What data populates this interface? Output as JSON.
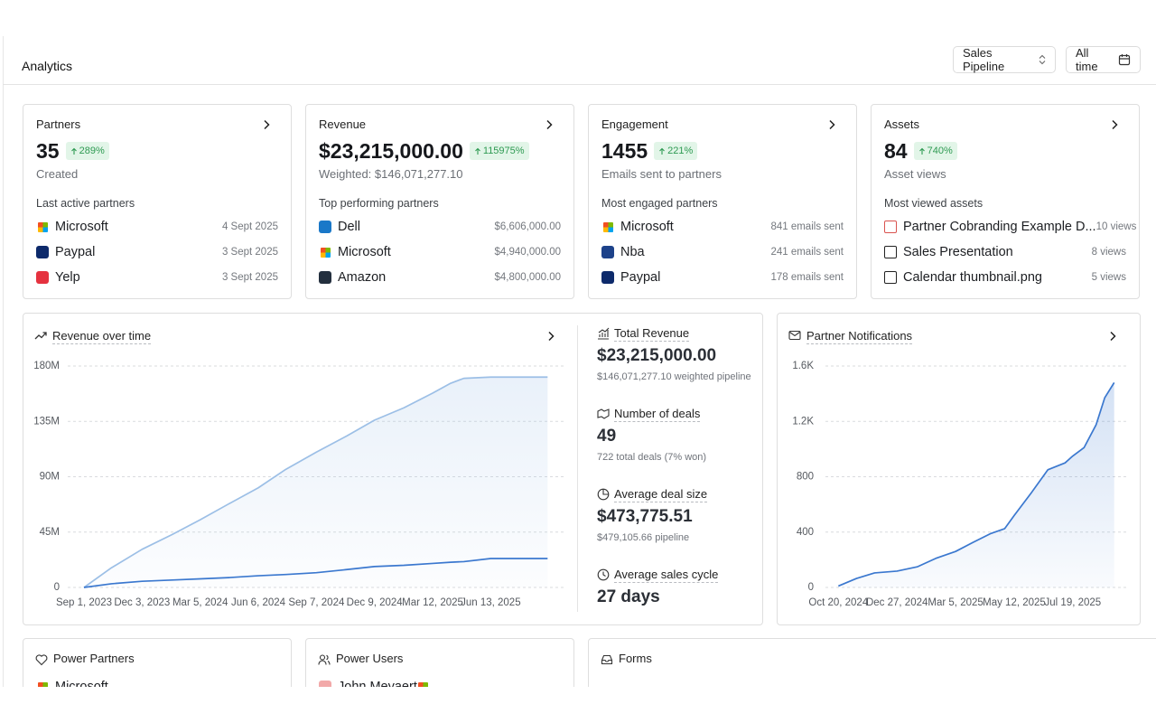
{
  "header": {
    "title": "Analytics",
    "pipeline_select": "Sales Pipeline",
    "time_select": "All time"
  },
  "cards": [
    {
      "title": "Partners",
      "value": "35",
      "change": "289%",
      "subtitle": "Created",
      "list_title": "Last active partners",
      "items": [
        {
          "name": "Microsoft",
          "meta": "4 Sept 2025"
        },
        {
          "name": "Paypal",
          "meta": "3 Sept 2025"
        },
        {
          "name": "Yelp",
          "meta": "3 Sept 2025"
        }
      ]
    },
    {
      "title": "Revenue",
      "value": "$23,215,000.00",
      "change": "115975%",
      "subtitle": "Weighted: $146,071,277.10",
      "list_title": "Top performing partners",
      "items": [
        {
          "name": "Dell",
          "meta": "$6,606,000.00"
        },
        {
          "name": "Microsoft",
          "meta": "$4,940,000.00"
        },
        {
          "name": "Amazon",
          "meta": "$4,800,000.00"
        }
      ]
    },
    {
      "title": "Engagement",
      "value": "1455",
      "change": "221%",
      "subtitle": "Emails sent to partners",
      "list_title": "Most engaged partners",
      "items": [
        {
          "name": "Microsoft",
          "meta": "841 emails sent"
        },
        {
          "name": "Nba",
          "meta": "241 emails sent"
        },
        {
          "name": "Paypal",
          "meta": "178 emails sent"
        }
      ]
    },
    {
      "title": "Assets",
      "value": "84",
      "change": "740%",
      "subtitle": "Asset views",
      "list_title": "Most viewed assets",
      "items": [
        {
          "name": "Partner Cobranding Example D...",
          "meta": "10 views"
        },
        {
          "name": "Sales Presentation",
          "meta": "8 views"
        },
        {
          "name": "Calendar thumbnail.png",
          "meta": "5 views"
        }
      ]
    }
  ],
  "stats": [
    {
      "label": "Total Revenue",
      "value": "$23,215,000.00",
      "detail": "$146,071,277.10 weighted pipeline"
    },
    {
      "label": "Number of deals",
      "value": "49",
      "detail": "722 total deals (7% won)"
    },
    {
      "label": "Average deal size",
      "value": "$473,775.51",
      "detail": "$479,105.66 pipeline"
    },
    {
      "label": "Average sales cycle",
      "value": "27 days"
    }
  ],
  "chart_data": [
    {
      "type": "line",
      "title": "Revenue over time",
      "x": [
        "2023-09-01",
        "2023-10-15",
        "2023-12-03",
        "2024-01-20",
        "2024-03-05",
        "2024-04-20",
        "2024-06-06",
        "2024-07-20",
        "2024-09-07",
        "2024-10-25",
        "2024-12-09",
        "2025-01-25",
        "2025-03-12",
        "2025-04-10",
        "2025-05-01",
        "2025-06-13",
        "2025-09-12"
      ],
      "series": [
        {
          "color": "#9cbfe6",
          "area": true,
          "values": [
            0,
            16000000,
            31000000,
            43000000,
            55000000,
            68000000,
            81000000,
            96000000,
            110000000,
            123000000,
            136000000,
            146000000,
            158000000,
            166000000,
            170000000,
            171000000,
            171000000
          ]
        },
        {
          "color": "#3b78cf",
          "values": [
            0,
            3000000,
            5000000,
            6000000,
            7000000,
            8000000,
            9500000,
            10500000,
            12000000,
            14500000,
            17000000,
            18000000,
            19500000,
            20500000,
            21000000,
            23500000,
            23500000
          ]
        }
      ],
      "xlim": [
        "2023-08-06",
        "2025-10-09"
      ],
      "xticks": [
        {
          "value": "2023-09-01",
          "label": "Sep 1, 2023"
        },
        {
          "value": "2023-12-03",
          "label": "Dec 3, 2023"
        },
        {
          "value": "2024-03-05",
          "label": "Mar 5, 2024"
        },
        {
          "value": "2024-06-06",
          "label": "Jun 6, 2024"
        },
        {
          "value": "2024-09-07",
          "label": "Sep 7, 2024"
        },
        {
          "value": "2024-12-09",
          "label": "Dec 9, 2024"
        },
        {
          "value": "2025-03-12",
          "label": "Mar 12, 2025"
        },
        {
          "value": "2025-06-13",
          "label": "Jun 13, 2025"
        }
      ],
      "ylim": [
        0,
        180000000
      ],
      "yticks": [
        0,
        {
          "value": 45000000,
          "label": "45M"
        },
        {
          "value": 90000000,
          "label": "90M"
        },
        {
          "value": 135000000,
          "label": "135M"
        },
        {
          "value": 180000000,
          "label": "180M"
        }
      ],
      "grid": true
    },
    {
      "type": "line",
      "title": "Partner Notifications",
      "x": [
        "2024-10-20",
        "2024-11-10",
        "2024-12-01",
        "2024-12-27",
        "2025-01-20",
        "2025-02-10",
        "2025-03-05",
        "2025-03-25",
        "2025-04-15",
        "2025-05-01",
        "2025-05-12",
        "2025-06-01",
        "2025-06-20",
        "2025-07-10",
        "2025-07-19",
        "2025-08-01",
        "2025-08-15",
        "2025-08-25",
        "2025-09-05"
      ],
      "series": [
        {
          "color": "#3b78cf",
          "area": true,
          "values": [
            10,
            65,
            105,
            118,
            150,
            210,
            260,
            325,
            390,
            425,
            520,
            685,
            850,
            900,
            950,
            1010,
            1175,
            1370,
            1480
          ]
        }
      ],
      "xlim": [
        "2024-10-05",
        "2025-09-20"
      ],
      "xticks": [
        {
          "value": "2024-10-20",
          "label": "Oct 20, 2024"
        },
        {
          "value": "2024-12-27",
          "label": "Dec 27, 2024"
        },
        {
          "value": "2025-03-05",
          "label": "Mar 5, 2025"
        },
        {
          "value": "2025-05-12",
          "label": "May 12, 2025"
        },
        {
          "value": "2025-07-19",
          "label": "Jul 19, 2025"
        }
      ],
      "ylim": [
        0,
        1600
      ],
      "yticks": [
        0,
        400,
        800,
        {
          "value": 1200,
          "label": "1.2K"
        },
        {
          "value": 1600,
          "label": "1.6K"
        }
      ],
      "grid": true
    }
  ],
  "bottom_cards": [
    {
      "title": "Power Partners",
      "items": [
        "Microsoft"
      ]
    },
    {
      "title": "Power Users",
      "items": [
        "John Meyaert"
      ]
    },
    {
      "title": "Forms"
    }
  ]
}
